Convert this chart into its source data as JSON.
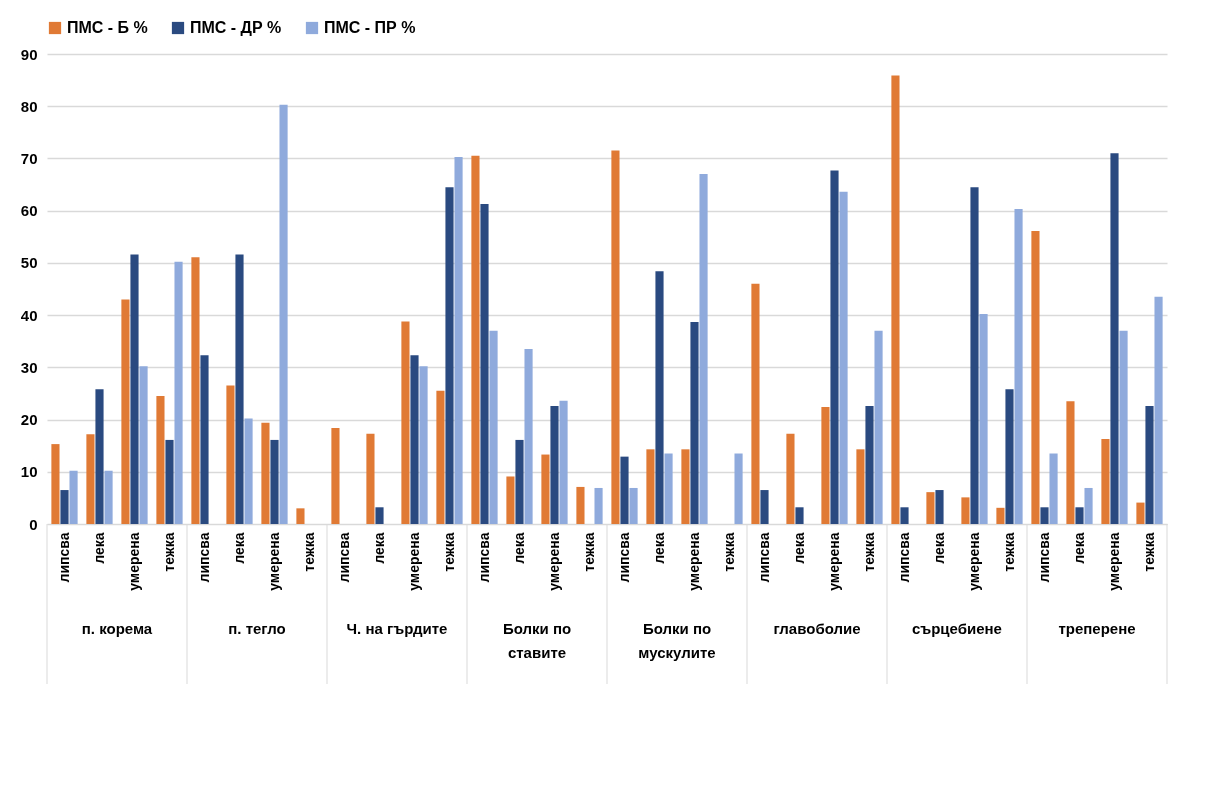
{
  "chart_data": {
    "type": "bar",
    "categories": [
      "липсва",
      "лека",
      "умерена",
      "тежка",
      "липсва",
      "лека",
      "умерена",
      "тежка",
      "липсва",
      "лека",
      "умерена",
      "тежка",
      "липсва",
      "лека",
      "умерена",
      "тежка",
      "липсва",
      "лека",
      "умерена",
      "тежка",
      "липсва",
      "лека",
      "умерена",
      "тежка",
      "липсва",
      "лека",
      "умерена",
      "тежка",
      "липсва",
      "лека",
      "умерена",
      "тежка"
    ],
    "annotations": [
      "п. корема",
      "п. тегло",
      "Ч. на гърдите",
      "Болки по ставите",
      "Болки по мускулите",
      "главоболие",
      "сърцебиене",
      "треперене"
    ],
    "series": [
      {
        "name": "ПМС - Б %",
        "color": "#e07a35",
        "values": [
          15.3,
          17.2,
          43,
          24.5,
          51.1,
          26.5,
          19.4,
          3,
          18.4,
          17.3,
          38.8,
          25.5,
          70.5,
          9.1,
          13.3,
          7.1,
          71.5,
          14.3,
          14.3,
          0,
          46,
          17.3,
          22.4,
          14.3,
          85.9,
          6.1,
          5.1,
          3.1,
          56.1,
          23.5,
          16.3,
          4.1
        ]
      },
      {
        "name": "ПМС - ДР %",
        "color": "#2a4a80",
        "values": [
          6.5,
          25.8,
          51.6,
          16.1,
          32.3,
          51.6,
          16.1,
          0,
          0,
          3.2,
          32.3,
          64.5,
          61.3,
          16.1,
          22.6,
          0,
          12.9,
          48.4,
          38.7,
          0,
          6.5,
          3.2,
          67.7,
          22.6,
          3.2,
          6.5,
          64.5,
          25.8,
          3.2,
          3.2,
          71,
          22.6
        ]
      },
      {
        "name": "ПМС - ПР %",
        "color": "#8faadc",
        "values": [
          10.2,
          10.2,
          30.2,
          50.2,
          0,
          20.2,
          80.3,
          0,
          0,
          0,
          30.2,
          70.3,
          37,
          33.5,
          23.6,
          6.9,
          6.9,
          13.5,
          67,
          13.5,
          0,
          0,
          63.6,
          37,
          0,
          0,
          40.2,
          60.3,
          13.5,
          6.9,
          37,
          43.5
        ]
      }
    ],
    "ylim": [
      0,
      90
    ],
    "yticks": [
      0,
      10,
      20,
      30,
      40,
      50,
      60,
      70,
      80,
      90
    ],
    "grid": "y",
    "legend": "top"
  }
}
